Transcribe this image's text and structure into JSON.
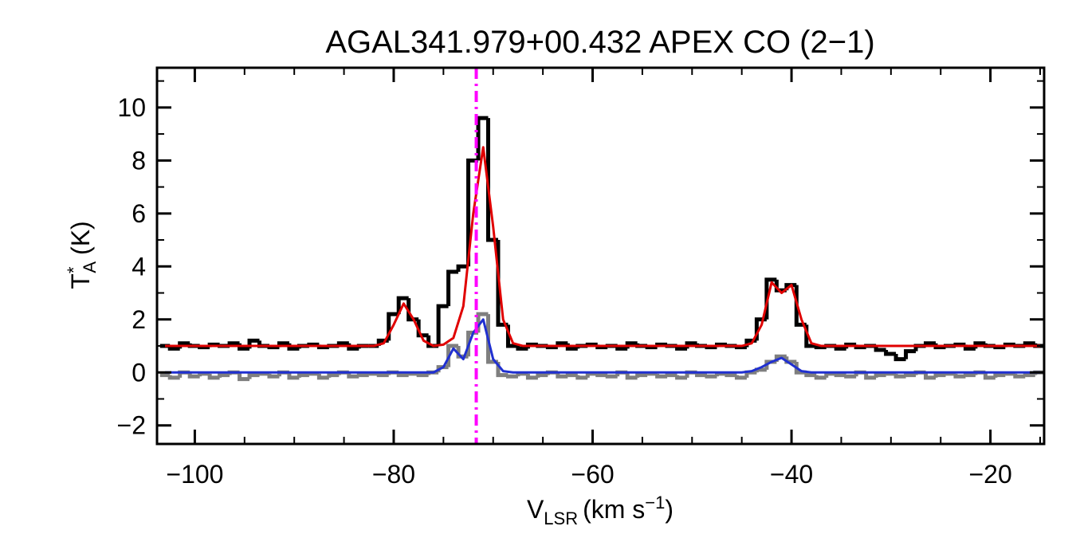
{
  "chart_data": {
    "type": "spectrum",
    "title": "AGAL341.979+00.432  APEX CO (2−1)",
    "x_label": {
      "symbol": "V",
      "sub": "LSR",
      "unit": "(km s",
      "sup": "−1",
      "close": ")"
    },
    "y_label": {
      "symbol": "T",
      "sup": "*",
      "sub": "A",
      "unit": "(K)"
    },
    "xlim": [
      -103.8,
      -14.6
    ],
    "ylim": [
      -2.7,
      11.5
    ],
    "xticks": [
      {
        "value": -100,
        "label": "−100"
      },
      {
        "value": -80,
        "label": "−80"
      },
      {
        "value": -60,
        "label": "−60"
      },
      {
        "value": -40,
        "label": "−40"
      },
      {
        "value": -20,
        "label": "−20"
      }
    ],
    "yticks": [
      {
        "value": -2,
        "label": "−2"
      },
      0,
      2,
      4,
      6,
      8,
      10
    ],
    "xminorticks": [
      -95,
      -90,
      -85,
      -75,
      -70,
      -65,
      -55,
      -50,
      -45,
      -35,
      -30,
      -25,
      -15
    ],
    "yminorticks": [
      -1,
      1,
      3,
      5,
      7,
      9,
      11
    ],
    "vline": {
      "x": -71.7,
      "color": "#ff00ff"
    },
    "x": [
      -103,
      -102,
      -101,
      -100,
      -99,
      -98,
      -97,
      -96,
      -95,
      -94,
      -93,
      -92,
      -91,
      -90,
      -89,
      -88,
      -87,
      -86,
      -85,
      -84,
      -83,
      -82,
      -81,
      -80,
      -79,
      -78,
      -77,
      -76,
      -75,
      -74,
      -73,
      -72,
      -71,
      -70,
      -69,
      -68,
      -67,
      -66,
      -65,
      -64,
      -63,
      -62,
      -61,
      -60,
      -59,
      -58,
      -57,
      -56,
      -55,
      -54,
      -53,
      -52,
      -51,
      -50,
      -49,
      -48,
      -47,
      -46,
      -45,
      -44,
      -43,
      -42,
      -41,
      -40,
      -39,
      -38,
      -37,
      -36,
      -35,
      -34,
      -33,
      -32,
      -31,
      -30,
      -29,
      -28,
      -27,
      -26,
      -25,
      -24,
      -23,
      -22,
      -21,
      -20,
      -19,
      -18,
      -17,
      -16,
      -15
    ],
    "series": [
      {
        "style": "step",
        "color": "#000000",
        "values": [
          1.0,
          0.9,
          1.1,
          1.0,
          0.95,
          1.05,
          1.0,
          1.1,
          0.9,
          1.2,
          1.0,
          0.95,
          1.1,
          0.9,
          1.0,
          1.05,
          0.95,
          1.0,
          1.1,
          0.9,
          1.0,
          1.0,
          1.2,
          2.2,
          2.8,
          2.0,
          1.4,
          1.0,
          2.5,
          3.8,
          4.0,
          8.0,
          9.6,
          5.0,
          1.8,
          1.0,
          0.9,
          1.05,
          1.0,
          0.95,
          1.1,
          0.9,
          1.0,
          1.05,
          0.95,
          1.0,
          0.9,
          1.1,
          1.0,
          0.95,
          1.05,
          1.0,
          0.9,
          1.1,
          1.0,
          0.95,
          1.05,
          1.0,
          0.95,
          1.2,
          2.0,
          3.5,
          3.1,
          3.3,
          1.8,
          1.0,
          0.95,
          1.0,
          0.9,
          1.05,
          0.95,
          1.0,
          0.85,
          0.7,
          0.5,
          0.8,
          1.0,
          1.1,
          0.95,
          1.0,
          1.05,
          0.9,
          1.1,
          1.0,
          0.95,
          1.05,
          1.0,
          1.1,
          1.0
        ]
      },
      {
        "style": "step",
        "color": "#7f7f7f",
        "values": [
          -0.1,
          -0.2,
          0.0,
          -0.15,
          -0.05,
          -0.2,
          -0.1,
          0.0,
          -0.25,
          -0.1,
          -0.05,
          -0.15,
          0.0,
          -0.2,
          -0.1,
          -0.05,
          -0.2,
          -0.1,
          0.0,
          -0.15,
          -0.1,
          -0.05,
          -0.1,
          0.0,
          -0.1,
          -0.05,
          -0.1,
          0.0,
          0.2,
          1.0,
          0.6,
          1.5,
          2.2,
          0.4,
          -0.1,
          -0.15,
          -0.05,
          -0.2,
          -0.1,
          0.0,
          -0.15,
          -0.1,
          -0.2,
          -0.05,
          -0.1,
          -0.15,
          0.0,
          -0.2,
          -0.1,
          -0.05,
          -0.15,
          -0.1,
          -0.2,
          0.0,
          -0.1,
          -0.15,
          -0.05,
          -0.1,
          -0.2,
          0.0,
          0.1,
          0.4,
          0.6,
          0.4,
          0.0,
          -0.1,
          -0.2,
          -0.05,
          -0.1,
          -0.15,
          0.0,
          -0.2,
          -0.1,
          -0.05,
          -0.15,
          -0.1,
          0.0,
          -0.2,
          -0.1,
          -0.05,
          -0.15,
          -0.1,
          0.0,
          -0.2,
          -0.1,
          -0.05,
          -0.15,
          -0.1,
          0.0
        ]
      },
      {
        "style": "line",
        "color": "#e00000",
        "values": [
          1.0,
          1.0,
          1.0,
          1.0,
          1.0,
          1.0,
          1.0,
          1.0,
          1.0,
          1.0,
          1.0,
          1.0,
          1.0,
          1.0,
          1.0,
          1.0,
          1.0,
          1.0,
          1.0,
          1.0,
          1.0,
          1.0,
          1.1,
          1.8,
          2.6,
          2.0,
          1.2,
          1.0,
          1.05,
          1.3,
          2.5,
          6.0,
          8.5,
          5.5,
          2.0,
          1.1,
          1.0,
          1.0,
          1.0,
          1.0,
          1.0,
          1.0,
          1.0,
          1.0,
          1.0,
          1.0,
          1.0,
          1.0,
          1.0,
          1.0,
          1.0,
          1.0,
          1.0,
          1.0,
          1.0,
          1.0,
          1.0,
          1.0,
          1.0,
          1.1,
          1.8,
          3.4,
          3.0,
          3.3,
          2.0,
          1.1,
          1.0,
          1.0,
          1.0,
          1.0,
          1.0,
          1.0,
          1.0,
          1.0,
          1.0,
          1.0,
          1.0,
          1.0,
          1.0,
          1.0,
          1.0,
          1.0,
          1.0,
          1.0,
          1.0,
          1.0,
          1.0,
          1.0,
          1.0
        ]
      },
      {
        "style": "line",
        "color": "#2030d0",
        "values": [
          0.0,
          0.0,
          0.0,
          0.0,
          0.0,
          0.0,
          0.0,
          0.0,
          0.0,
          0.0,
          0.0,
          0.0,
          0.0,
          0.0,
          0.0,
          0.0,
          0.0,
          0.0,
          0.0,
          0.0,
          0.0,
          0.0,
          0.0,
          0.0,
          0.0,
          0.0,
          0.0,
          0.0,
          0.2,
          0.9,
          0.5,
          1.5,
          2.0,
          0.5,
          0.05,
          0.0,
          0.0,
          0.0,
          0.0,
          0.0,
          0.0,
          0.0,
          0.0,
          0.0,
          0.0,
          0.0,
          0.0,
          0.0,
          0.0,
          0.0,
          0.0,
          0.0,
          0.0,
          0.0,
          0.0,
          0.0,
          0.0,
          0.0,
          0.0,
          0.05,
          0.2,
          0.4,
          0.55,
          0.3,
          0.05,
          0.0,
          0.0,
          0.0,
          0.0,
          0.0,
          0.0,
          0.0,
          0.0,
          0.0,
          0.0,
          0.0,
          0.0,
          0.0,
          0.0,
          0.0,
          0.0,
          0.0,
          0.0,
          0.0,
          0.0,
          0.0,
          0.0,
          0.0,
          0.0
        ]
      }
    ]
  }
}
